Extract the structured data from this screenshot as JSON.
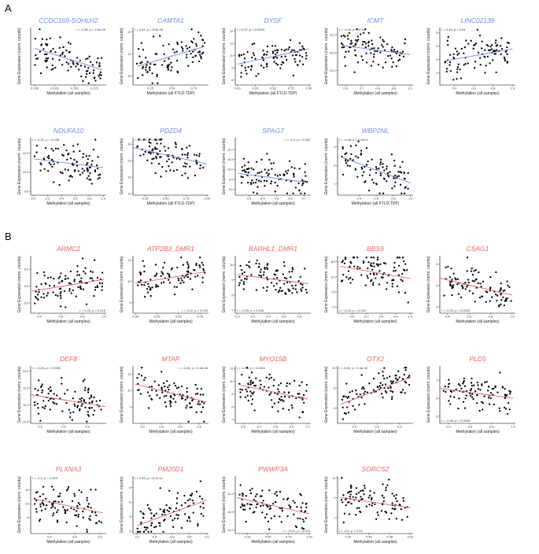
{
  "panel_labels": [
    "A",
    "B"
  ],
  "colors": {
    "A": "#6d8fd6",
    "B": "#e06666",
    "titleA": "#6d8fd6",
    "titleB": "#e06666",
    "point": "#000000"
  },
  "chart_data": [
    {
      "type": "scatter",
      "group": "A",
      "title": "CCDC169-SOHLH2",
      "stat": "r = -0.38, p = 2.6e-05",
      "xlabel": "Methylation (all samples)",
      "ylabel": "Gene Expression (norm. counts)",
      "xlim": [
        0.095,
        0.19
      ],
      "ylim": [
        7.1,
        10.7
      ],
      "xticks": [
        "0.100",
        "0.125",
        "0.150",
        "0.175"
      ],
      "xtickv": [
        0.1,
        0.125,
        0.15,
        0.175
      ],
      "yticks": [],
      "fit": [
        [
          0.1,
          9.4
        ],
        [
          0.185,
          8.05
        ]
      ],
      "stat_pos": "top-right"
    },
    {
      "type": "scatter",
      "group": "A",
      "title": "CAMTA1",
      "stat": "r = 0.41, p = 8.9e-05",
      "xlabel": "Methylation (all FTLD-TDP)",
      "ylabel": "Gene Expression (norm. counts)",
      "xlim": [
        0.05,
        0.92
      ],
      "ylim": [
        9.6,
        12.2
      ],
      "xticks": [
        "0.25",
        "0.50",
        "0.75"
      ],
      "xtickv": [
        0.25,
        0.5,
        0.75
      ],
      "yticks": [
        "10",
        "11",
        "12"
      ],
      "ytickv": [
        10,
        11,
        12
      ],
      "fit": [
        [
          0.1,
          10.45
        ],
        [
          0.88,
          11.35
        ]
      ],
      "stat_pos": "top-left"
    },
    {
      "type": "scatter",
      "group": "A",
      "title": "DYSF",
      "stat": "r = 0.37, p = 0.0063",
      "xlabel": "Methylation (all FTLD-TDP)",
      "ylabel": "Gene Expression (norm. counts)",
      "xlim": [
        -0.03,
        1.03
      ],
      "ylim": [
        7.6,
        12.3
      ],
      "xticks": [
        "0.00",
        "0.25",
        "0.50",
        "0.75",
        "1.00"
      ],
      "xtickv": [
        0,
        0.25,
        0.5,
        0.75,
        1
      ],
      "yticks": [
        "8",
        "9",
        "10",
        "11",
        "12"
      ],
      "ytickv": [
        8,
        9,
        10,
        11,
        12
      ],
      "fit": [
        [
          0,
          9.3
        ],
        [
          1,
          10.55
        ]
      ],
      "stat_pos": "top-left"
    },
    {
      "type": "scatter",
      "group": "A",
      "title": "ICMT",
      "stat": "r = -0.29, p = 0.017",
      "xlabel": "Methylation (all samples)",
      "ylabel": "Gene Expression (norm. counts)",
      "xlim": [
        0.55,
        1.02
      ],
      "ylim": [
        9.6,
        11.2
      ],
      "xticks": [
        "0.6",
        "0.7",
        "0.8",
        "0.9",
        "1.0"
      ],
      "xtickv": [
        0.6,
        0.7,
        0.8,
        0.9,
        1.0
      ],
      "yticks": [
        "10.0",
        "10.5",
        "11.0"
      ],
      "ytickv": [
        10,
        10.5,
        11
      ],
      "fit": [
        [
          0.58,
          10.7
        ],
        [
          1,
          10.45
        ]
      ],
      "stat_pos": "top-left"
    },
    {
      "type": "scatter",
      "group": "A",
      "title": "LINC02139",
      "stat": "r = 0.18, p = 0.04",
      "xlabel": "Methylation (all samples)",
      "ylabel": "Gene Expression (norm. counts)",
      "xlim": [
        0.25,
        1.03
      ],
      "ylim": [
        2.1,
        6.4
      ],
      "xticks": [
        "0.4",
        "0.6",
        "0.8",
        "1.0"
      ],
      "xtickv": [
        0.4,
        0.6,
        0.8,
        1.0
      ],
      "yticks": [
        "3",
        "4",
        "5",
        "6"
      ],
      "ytickv": [
        3,
        4,
        5,
        6
      ],
      "fit": [
        [
          0.3,
          3.9
        ],
        [
          1,
          4.8
        ]
      ],
      "stat_pos": "top-left"
    },
    {
      "type": "scatter",
      "group": "A",
      "title": "NDUFA10",
      "stat": "r = -0.22, p = 0.038",
      "xlabel": "Methylation (all samples)",
      "ylabel": "Gene Expression (norm. counts)",
      "xlim": [
        -0.04,
        1.04
      ],
      "ylim": [
        9.4,
        10.9
      ],
      "xticks": [
        "0.0",
        "0.2",
        "0.4",
        "0.6",
        "0.8",
        "1.0"
      ],
      "xtickv": [
        0,
        0.2,
        0.4,
        0.6,
        0.8,
        1.0
      ],
      "yticks": [
        "9.5",
        "10.0",
        "10.5"
      ],
      "ytickv": [
        9.5,
        10,
        10.5
      ],
      "fit": [
        [
          0,
          10.35
        ],
        [
          1,
          10.12
        ]
      ],
      "stat_pos": "top-left"
    },
    {
      "type": "scatter",
      "group": "A",
      "title": "PDZD4",
      "stat": "r = -0.55, p = 0.009",
      "xlabel": "Methylation (all FTLD-TDP)",
      "ylabel": "Gene Expression (norm. counts)",
      "xlim": [
        0.1,
        1.02
      ],
      "ylim": [
        10.9,
        14.4
      ],
      "xticks": [
        "0.25",
        "0.50",
        "0.75",
        "1.00"
      ],
      "xtickv": [
        0.25,
        0.5,
        0.75,
        1.0
      ],
      "yticks": [
        "11",
        "12",
        "13",
        "14"
      ],
      "ytickv": [
        11,
        12,
        13,
        14
      ],
      "fit": [
        [
          0.1,
          13.8
        ],
        [
          1,
          12.8
        ]
      ],
      "stat_pos": "top-left"
    },
    {
      "type": "scatter",
      "group": "A",
      "title": "SPAG7",
      "stat": "r = -0.2, p = 0.032",
      "xlabel": "Methylation (all samples)",
      "ylabel": "Gene Expression (norm. counts)",
      "xlim": [
        0.2,
        0.75
      ],
      "ylim": [
        8.7,
        11.6
      ],
      "xticks": [
        "0.3",
        "0.4",
        "0.5",
        "0.6",
        "0.7"
      ],
      "xtickv": [
        0.3,
        0.4,
        0.5,
        0.6,
        0.7
      ],
      "yticks": [
        "9.0",
        "9.5",
        "10.0",
        "10.5",
        "11.0"
      ],
      "ytickv": [
        9,
        9.5,
        10,
        10.5,
        11
      ],
      "fit": [
        [
          0.22,
          9.8
        ],
        [
          0.72,
          9.35
        ]
      ],
      "stat_pos": "top-right"
    },
    {
      "type": "scatter",
      "group": "A",
      "title": "WBP2NL",
      "stat": "r = -0.28, p = 0.0074",
      "xlabel": "Methylation (all FTLD-TDP)",
      "ylabel": "Gene Expression (norm. counts)",
      "xlim": [
        0.15,
        1.03
      ],
      "ylim": [
        6.4,
        9.5
      ],
      "xticks": [
        "0.4",
        "0.6",
        "0.8",
        "1.0"
      ],
      "xtickv": [
        0.4,
        0.6,
        0.8,
        1.0
      ],
      "yticks": [
        "7",
        "8",
        "9"
      ],
      "ytickv": [
        7,
        8,
        9
      ],
      "fit": [
        [
          0.2,
          8.45
        ],
        [
          1,
          7.05
        ]
      ],
      "stat_pos": "top-left"
    },
    {
      "type": "scatter",
      "group": "B",
      "title": "ARMC2",
      "stat": "r = 0.22, p = 0.015",
      "xlabel": "Methylation (all samples)",
      "ylabel": "Gene Expression (norm. counts)",
      "xlim": [
        0.32,
        1.02
      ],
      "ylim": [
        4.7,
        6.4
      ],
      "xticks": [
        "0.4",
        "0.6",
        "0.8",
        "1.0"
      ],
      "xtickv": [
        0.4,
        0.6,
        0.8,
        1.0
      ],
      "yticks": [
        "5.0",
        "5.5",
        "6.0"
      ],
      "ytickv": [
        5,
        5.5,
        6
      ],
      "fit": [
        [
          0.33,
          5.35
        ],
        [
          1,
          5.7
        ]
      ],
      "stat_pos": "bottom-right"
    },
    {
      "type": "scatter",
      "group": "B",
      "title": "ATP2B3_DMR1",
      "stat": "r = 0.22, p = 0.035",
      "xlabel": "Methylation (all samples)",
      "ylabel": "Gene Expression (norm. counts)",
      "xlim": [
        -0.03,
        0.85
      ],
      "ylim": [
        8.5,
        11.2
      ],
      "xticks": [
        "0.00",
        "0.25",
        "0.50",
        "0.75"
      ],
      "xtickv": [
        0,
        0.25,
        0.5,
        0.75
      ],
      "yticks": [
        "9",
        "10",
        "11"
      ],
      "ytickv": [
        9,
        10,
        11
      ],
      "fit": [
        [
          0,
          9.9
        ],
        [
          0.82,
          10.45
        ]
      ],
      "stat_pos": "bottom-right"
    },
    {
      "type": "scatter",
      "group": "B",
      "title": "BARHL1_DMR1",
      "stat": "r = -0.35, p = 0.008",
      "xlabel": "Methylation (all samples)",
      "ylabel": "Gene Expression (norm. counts)",
      "xlim": [
        -0.03,
        0.95
      ],
      "ylim": [
        6.8,
        10.6
      ],
      "xticks": [
        "0.0",
        "0.2",
        "0.4",
        "0.6",
        "0.8"
      ],
      "xtickv": [
        0,
        0.2,
        0.4,
        0.6,
        0.8
      ],
      "yticks": [
        "7",
        "8",
        "9",
        "10"
      ],
      "ytickv": [
        7,
        8,
        9,
        10
      ],
      "fit": [
        [
          0,
          9.35
        ],
        [
          0.92,
          8.75
        ]
      ],
      "stat_pos": "bottom-left"
    },
    {
      "type": "scatter",
      "group": "B",
      "title": "BBS9",
      "stat": "r = -0.24, p = 0.042",
      "xlabel": "Methylation (all samples)",
      "ylabel": "Gene Expression (norm. counts)",
      "xlim": [
        0.5,
        1.02
      ],
      "ylim": [
        6.8,
        8.7
      ],
      "xticks": [
        "0.6",
        "0.7",
        "0.8",
        "0.9",
        "1.0"
      ],
      "xtickv": [
        0.6,
        0.7,
        0.8,
        0.9,
        1.0
      ],
      "yticks": [
        "7.0",
        "7.5",
        "8.0",
        "8.5"
      ],
      "ytickv": [
        7,
        7.5,
        8,
        8.5
      ],
      "fit": [
        [
          0.52,
          8.35
        ],
        [
          1,
          7.95
        ]
      ],
      "stat_pos": "bottom-left"
    },
    {
      "type": "scatter",
      "group": "B",
      "title": "CSAG1",
      "stat": "r = -0.29, p = 0.0032",
      "xlabel": "Methylation (all samples)",
      "ylabel": "Gene Expression (norm. counts)",
      "xlim": [
        0.33,
        1.03
      ],
      "ylim": [
        3.7,
        6.4
      ],
      "xticks": [
        "0.4",
        "0.6",
        "0.8",
        "1.0"
      ],
      "xtickv": [
        0.4,
        0.6,
        0.8,
        1.0
      ],
      "yticks": [
        "4",
        "5",
        "6"
      ],
      "ytickv": [
        4,
        5,
        6
      ],
      "fit": [
        [
          0.33,
          5.35
        ],
        [
          1,
          4.55
        ]
      ],
      "stat_pos": "bottom-left"
    },
    {
      "type": "scatter",
      "group": "B",
      "title": "DEF8",
      "stat": "r = -0.26, p = 0.0083",
      "xlabel": "Methylation (all samples)",
      "ylabel": "Gene Expression (norm. counts)",
      "xlim": [
        0.32,
        0.96
      ],
      "ylim": [
        10.45,
        12.15
      ],
      "xticks": [
        "0.4",
        "0.6",
        "0.8"
      ],
      "xtickv": [
        0.4,
        0.6,
        0.8
      ],
      "yticks": [
        "10.5",
        "11.0",
        "11.5",
        "12.0"
      ],
      "ytickv": [
        10.5,
        11,
        11.5,
        12
      ],
      "fit": [
        [
          0.32,
          11.3
        ],
        [
          0.95,
          10.95
        ]
      ],
      "stat_pos": "top-left"
    },
    {
      "type": "scatter",
      "group": "B",
      "title": "MTAP",
      "stat": "r = -0.36, p = 4.4e-05",
      "xlabel": "Methylation (all samples)",
      "ylabel": "Gene Expression (norm. counts)",
      "xlim": [
        0.1,
        0.9
      ],
      "ylim": [
        8.0,
        11.5
      ],
      "xticks": [
        "0.2",
        "0.4",
        "0.6",
        "0.8"
      ],
      "xtickv": [
        0.2,
        0.4,
        0.6,
        0.8
      ],
      "yticks": [
        "9",
        "10",
        "11"
      ],
      "ytickv": [
        9,
        10,
        11
      ],
      "fit": [
        [
          0.12,
          10.4
        ],
        [
          0.88,
          9.3
        ]
      ],
      "stat_pos": "top-right"
    },
    {
      "type": "scatter",
      "group": "B",
      "title": "MYO15B",
      "stat": "r = -0.33, p = 0.0041",
      "xlabel": "Methylation (all samples)",
      "ylabel": "Gene Expression (norm. counts)",
      "xlim": [
        0.55,
        1.02
      ],
      "ylim": [
        6.7,
        11.2
      ],
      "xticks": [
        "0.6",
        "0.7",
        "0.8",
        "0.9",
        "1.0"
      ],
      "xtickv": [
        0.6,
        0.7,
        0.8,
        0.9,
        1.0
      ],
      "yticks": [
        "7",
        "8",
        "9",
        "10",
        "11"
      ],
      "ytickv": [
        7,
        8,
        9,
        10,
        11
      ],
      "fit": [
        [
          0.58,
          9.7
        ],
        [
          1,
          8.6
        ]
      ],
      "stat_pos": "top-left"
    },
    {
      "type": "scatter",
      "group": "B",
      "title": "OTX2",
      "stat": "r = 0.56, p = 1.6e-09",
      "xlabel": "Methylation (all samples)",
      "ylabel": "Gene Expression (norm. counts)",
      "xlim": [
        0.25,
        0.92
      ],
      "ylim": [
        4.5,
        10.2
      ],
      "xticks": [
        "0.4",
        "0.6",
        "0.8"
      ],
      "xtickv": [
        0.4,
        0.6,
        0.8
      ],
      "yticks": [
        "6",
        "8",
        "10"
      ],
      "ytickv": [
        6,
        8,
        10
      ],
      "fit": [
        [
          0.28,
          6.4
        ],
        [
          0.9,
          9.1
        ]
      ],
      "stat_pos": "top-left"
    },
    {
      "type": "scatter",
      "group": "B",
      "title": "PLD5",
      "stat": "r = -0.28, p = 0.0045",
      "xlabel": "Methylation (all samples)",
      "ylabel": "Gene Expression (norm. counts)",
      "xlim": [
        0.32,
        1.02
      ],
      "ylim": [
        4.6,
        7.8
      ],
      "xticks": [
        "0.4",
        "0.6",
        "0.8",
        "1.0"
      ],
      "xtickv": [
        0.4,
        0.6,
        0.8,
        1.0
      ],
      "yticks": [
        "5",
        "6",
        "7"
      ],
      "ytickv": [
        5,
        6,
        7
      ],
      "fit": [
        [
          0.32,
          6.55
        ],
        [
          1,
          6.0
        ]
      ],
      "stat_pos": "bottom-left"
    },
    {
      "type": "scatter",
      "group": "B",
      "title": "PLXNA3",
      "stat": "r = -0.2, p = 0.029",
      "xlabel": "Methylation (all samples)",
      "ylabel": "Gene Expression (norm. counts)",
      "xlim": [
        0.25,
        0.85
      ],
      "ylim": [
        5.7,
        14.0
      ],
      "xticks": [
        "0.4",
        "0.6",
        "0.8"
      ],
      "xtickv": [
        0.4,
        0.6,
        0.8
      ],
      "yticks": [
        "8",
        "10",
        "12"
      ],
      "ytickv": [
        8,
        10,
        12
      ],
      "fit": [
        [
          0.28,
          10.7
        ],
        [
          0.82,
          8.7
        ]
      ],
      "stat_pos": "top-left"
    },
    {
      "type": "scatter",
      "group": "B",
      "title": "PM20D1",
      "stat": "r = 0.55, p = 8.7e-11",
      "xlabel": "Methylation (all samples)",
      "ylabel": "Gene Expression (norm. counts)",
      "xlim": [
        0.15,
        1.02
      ],
      "ylim": [
        1.7,
        9.6
      ],
      "xticks": [
        "0.2",
        "0.4",
        "0.6",
        "0.8",
        "1.0"
      ],
      "xtickv": [
        0.2,
        0.4,
        0.6,
        0.8,
        1.0
      ],
      "yticks": [
        "2",
        "4",
        "6",
        "8"
      ],
      "ytickv": [
        2,
        4,
        6,
        8
      ],
      "fit": [
        [
          0.2,
          2.8
        ],
        [
          1,
          6.3
        ]
      ],
      "stat_pos": "top-left"
    },
    {
      "type": "scatter",
      "group": "B",
      "title": "PWWP3A",
      "stat": "r = -0.21, p = 0.023",
      "xlabel": "Methylation (all samples)",
      "ylabel": "Gene Expression (norm. counts)",
      "xlim": [
        0.1,
        1.02
      ],
      "ylim": [
        9.9,
        11.5
      ],
      "xticks": [
        "0.25",
        "0.50",
        "0.75",
        "1.00"
      ],
      "xtickv": [
        0.25,
        0.5,
        0.75,
        1.0
      ],
      "yticks": [
        "10.0",
        "10.5",
        "11.0"
      ],
      "ytickv": [
        10,
        10.5,
        11
      ],
      "fit": [
        [
          0.12,
          10.9
        ],
        [
          1,
          10.45
        ]
      ],
      "stat_pos": "bottom-right"
    },
    {
      "type": "scatter",
      "group": "B",
      "title": "SORCS2",
      "stat": "r = -0.2, p = 0.03",
      "xlabel": "Methylation (all samples)",
      "ylabel": "Gene Expression (norm. counts)",
      "xlim": [
        0.38,
        0.525
      ],
      "ylim": [
        5.4,
        11.2
      ],
      "xticks": [
        "0.40",
        "0.44",
        "0.48",
        "0.52"
      ],
      "xtickv": [
        0.4,
        0.44,
        0.48,
        0.52
      ],
      "yticks": [
        "7",
        "9",
        "11"
      ],
      "ytickv": [
        7,
        9,
        11
      ],
      "fit": [
        [
          0.385,
          9.05
        ],
        [
          0.52,
          8.0
        ]
      ],
      "stat_pos": "bottom-left"
    }
  ]
}
